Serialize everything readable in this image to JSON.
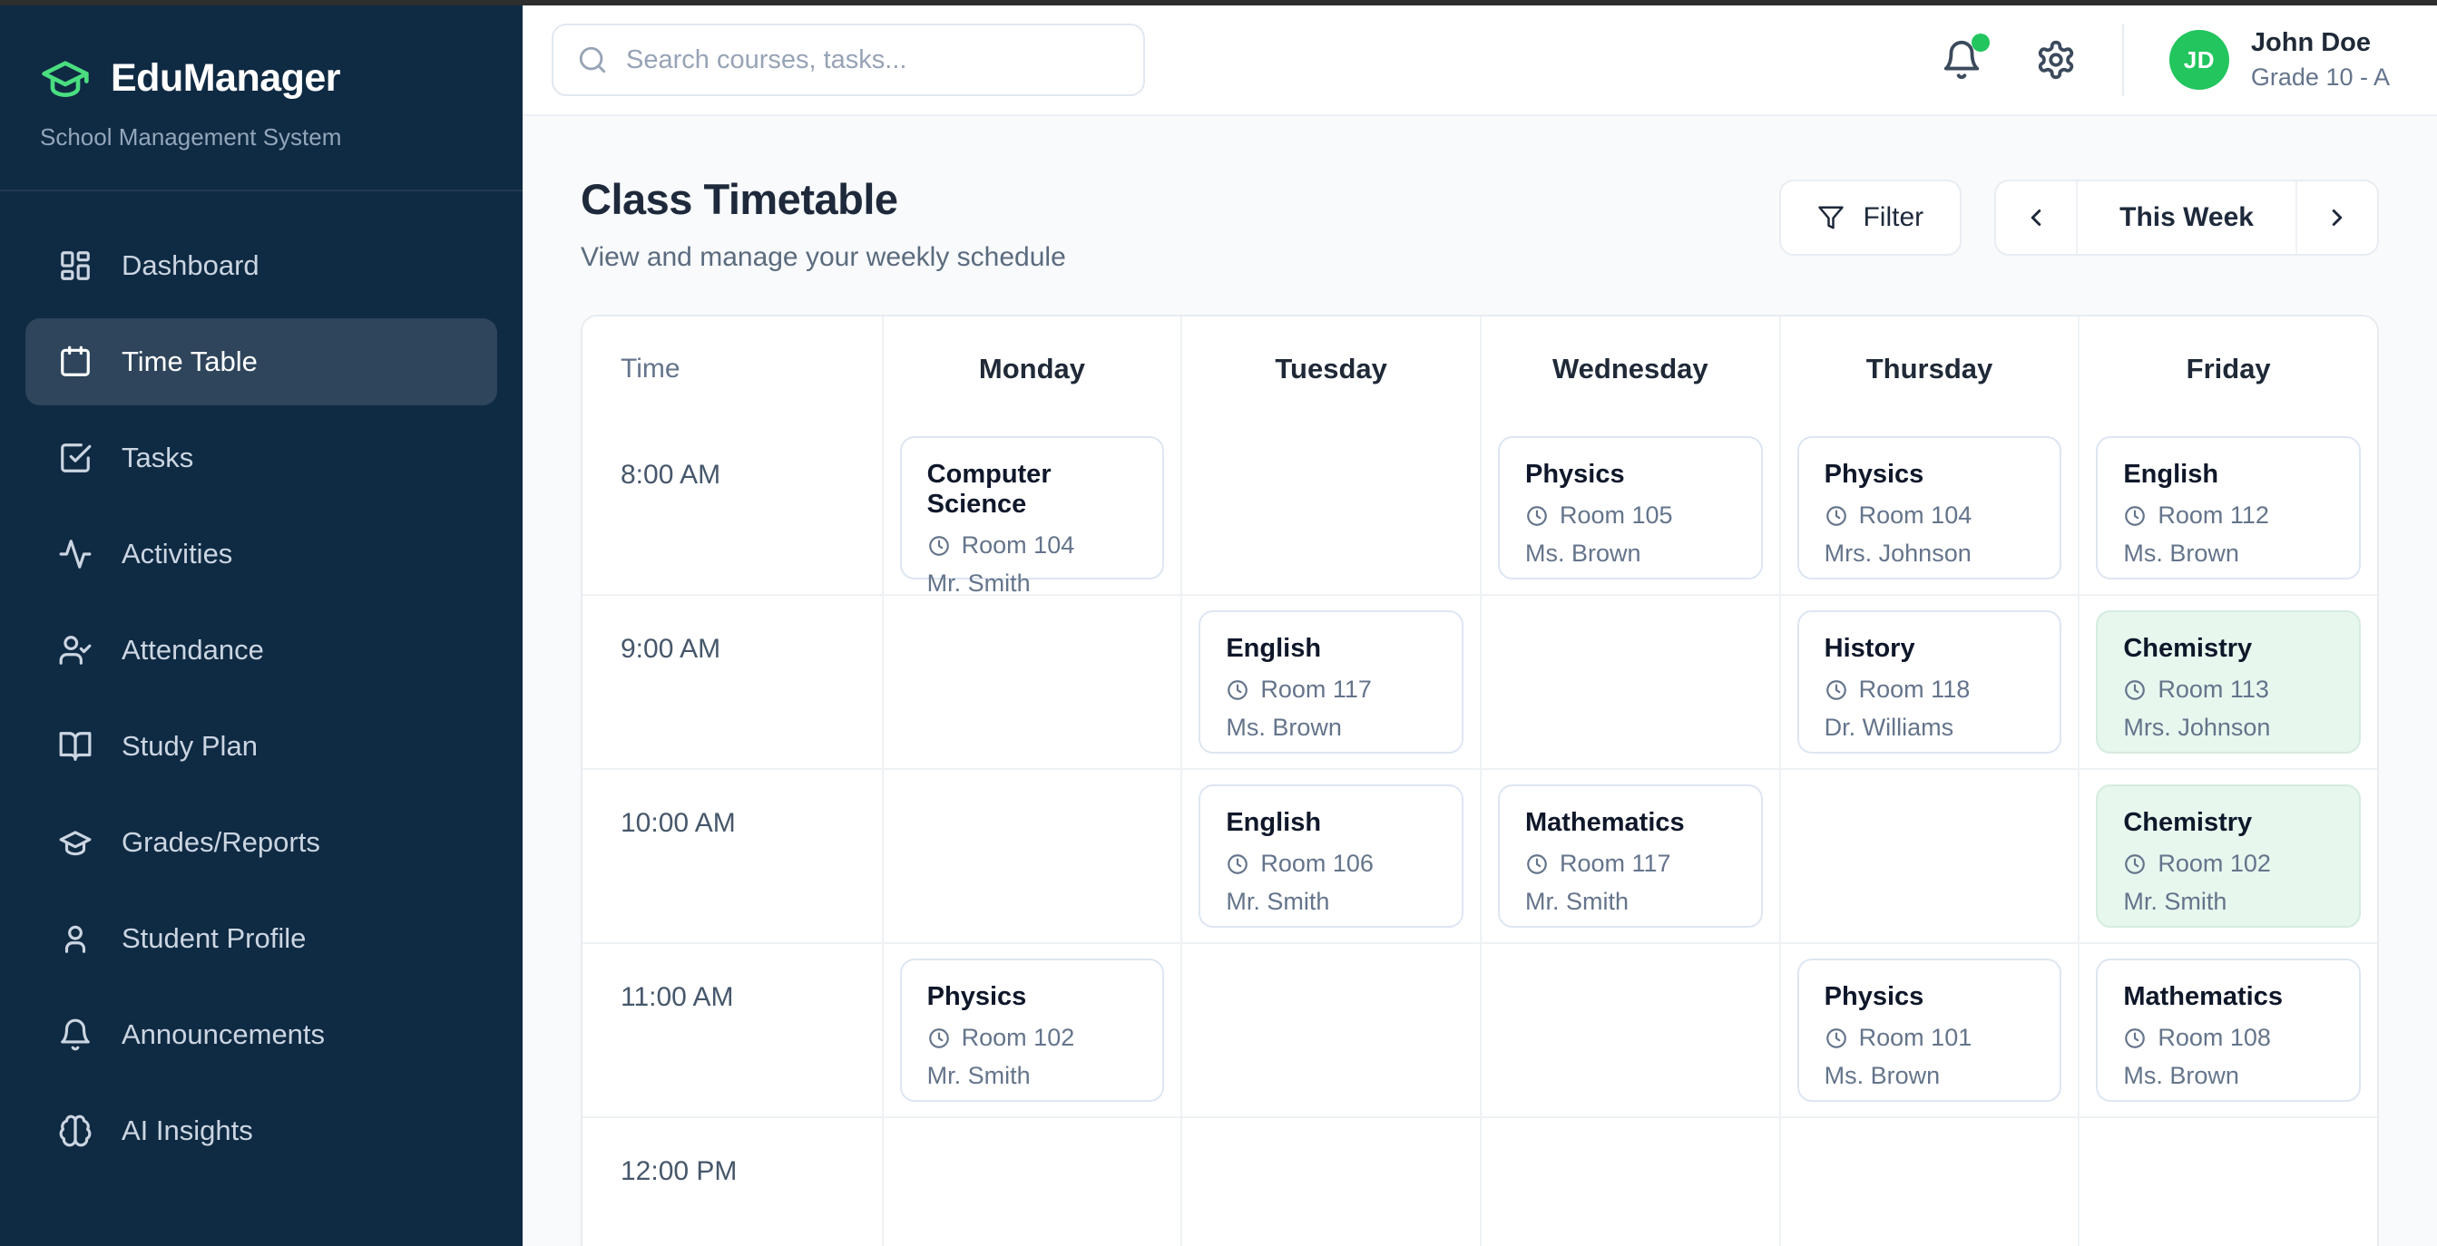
{
  "colors": {
    "accent_green": "#22c55e",
    "logo_green": "#4ade80",
    "sidebar_bg": "#0f2a43",
    "highlight_card_bg": "#e7f7ee",
    "heading": "#1e293b",
    "muted": "#64748b"
  },
  "sidebar": {
    "logo": {
      "icon": "graduation-cap-icon",
      "title": "EduManager",
      "subtitle": "School Management System"
    },
    "items": [
      {
        "icon": "dashboard",
        "label": "Dashboard",
        "active": false
      },
      {
        "icon": "calendar",
        "label": "Time Table",
        "active": true
      },
      {
        "icon": "check-square",
        "label": "Tasks",
        "active": false
      },
      {
        "icon": "activity",
        "label": "Activities",
        "active": false
      },
      {
        "icon": "user-check",
        "label": "Attendance",
        "active": false
      },
      {
        "icon": "book-open",
        "label": "Study Plan",
        "active": false
      },
      {
        "icon": "graduation-cap",
        "label": "Grades/Reports",
        "active": false
      },
      {
        "icon": "user",
        "label": "Student Profile",
        "active": false
      },
      {
        "icon": "bell",
        "label": "Announcements",
        "active": false
      },
      {
        "icon": "brain",
        "label": "AI Insights",
        "active": false
      }
    ]
  },
  "header": {
    "search_placeholder": "Search courses, tasks...",
    "search_icon": "search-icon",
    "notifications_icon": "bell-icon",
    "notification_dot": true,
    "settings_icon": "gear-icon",
    "user": {
      "initials": "JD",
      "name": "John Doe",
      "grade": "Grade 10 - A"
    }
  },
  "page": {
    "title": "Class Timetable",
    "subtitle": "View and manage your weekly schedule",
    "filter_label": "Filter",
    "filter_icon": "funnel-icon",
    "week_label": "This Week"
  },
  "timetable": {
    "columns": [
      "Time",
      "Monday",
      "Tuesday",
      "Wednesday",
      "Thursday",
      "Friday"
    ],
    "rows": [
      {
        "time": "8:00 AM",
        "classes": [
          {
            "subject": "Computer Science",
            "room": "Room 104",
            "teacher": "Mr. Smith",
            "highlight": false
          },
          null,
          {
            "subject": "Physics",
            "room": "Room 105",
            "teacher": "Ms. Brown",
            "highlight": false
          },
          {
            "subject": "Physics",
            "room": "Room 104",
            "teacher": "Mrs. Johnson",
            "highlight": false
          },
          {
            "subject": "English",
            "room": "Room 112",
            "teacher": "Ms. Brown",
            "highlight": false
          }
        ]
      },
      {
        "time": "9:00 AM",
        "classes": [
          null,
          {
            "subject": "English",
            "room": "Room 117",
            "teacher": "Ms. Brown",
            "highlight": false
          },
          null,
          {
            "subject": "History",
            "room": "Room 118",
            "teacher": "Dr. Williams",
            "highlight": false
          },
          {
            "subject": "Chemistry",
            "room": "Room 113",
            "teacher": "Mrs. Johnson",
            "highlight": true
          }
        ]
      },
      {
        "time": "10:00 AM",
        "classes": [
          null,
          {
            "subject": "English",
            "room": "Room 106",
            "teacher": "Mr. Smith",
            "highlight": false
          },
          {
            "subject": "Mathematics",
            "room": "Room 117",
            "teacher": "Mr. Smith",
            "highlight": false
          },
          null,
          {
            "subject": "Chemistry",
            "room": "Room 102",
            "teacher": "Mr. Smith",
            "highlight": true
          }
        ]
      },
      {
        "time": "11:00 AM",
        "classes": [
          {
            "subject": "Physics",
            "room": "Room 102",
            "teacher": "Mr. Smith",
            "highlight": false
          },
          null,
          null,
          {
            "subject": "Physics",
            "room": "Room 101",
            "teacher": "Ms. Brown",
            "highlight": false
          },
          {
            "subject": "Mathematics",
            "room": "Room 108",
            "teacher": "Ms. Brown",
            "highlight": false
          }
        ]
      },
      {
        "time": "12:00 PM",
        "classes": [
          null,
          null,
          null,
          null,
          null
        ]
      }
    ]
  }
}
